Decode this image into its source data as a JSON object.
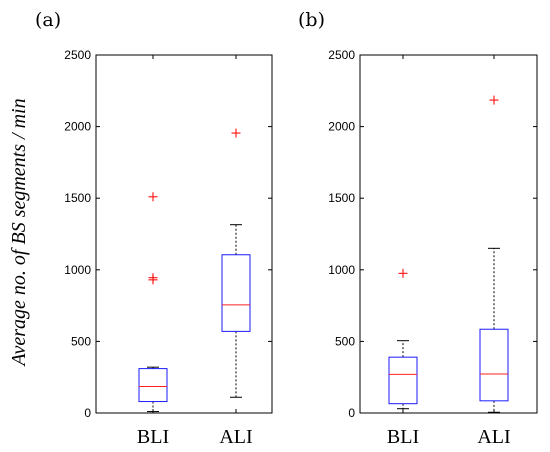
{
  "chart_data": [
    {
      "type": "box",
      "panel_label": "(a)",
      "ylabel": "Average no. of BS segments / min",
      "ylim": [
        0,
        2500
      ],
      "yticks": [
        0,
        500,
        1000,
        1500,
        2000,
        2500
      ],
      "ytick_labels": [
        "0",
        "500",
        "1000",
        "1500",
        "2000",
        "2500"
      ],
      "categories": [
        "BLI",
        "ALI"
      ],
      "boxes": [
        {
          "category": "BLI",
          "whisker_low": 10,
          "q1": 80,
          "median": 185,
          "q3": 310,
          "whisker_high": 320,
          "outliers": [
            1510,
            945,
            930
          ]
        },
        {
          "category": "ALI",
          "whisker_low": 110,
          "q1": 570,
          "median": 755,
          "q3": 1105,
          "whisker_high": 1315,
          "outliers": [
            1955
          ]
        }
      ],
      "colors": {
        "box": "#1a1aff",
        "median": "#ff2020",
        "outlier": "#ff2020",
        "whisker": "#000000"
      }
    },
    {
      "type": "box",
      "panel_label": "(b)",
      "ylabel": "",
      "ylim": [
        0,
        2500
      ],
      "yticks": [
        0,
        500,
        1000,
        1500,
        2000,
        2500
      ],
      "ytick_labels": [
        "0",
        "500",
        "1000",
        "1500",
        "2000",
        "2500"
      ],
      "categories": [
        "BLI",
        "ALI"
      ],
      "boxes": [
        {
          "category": "BLI",
          "whisker_low": 30,
          "q1": 65,
          "median": 270,
          "q3": 390,
          "whisker_high": 505,
          "outliers": [
            975
          ]
        },
        {
          "category": "ALI",
          "whisker_low": 5,
          "q1": 85,
          "median": 272,
          "q3": 585,
          "whisker_high": 1150,
          "outliers": [
            2185
          ]
        }
      ],
      "colors": {
        "box": "#1a1aff",
        "median": "#ff2020",
        "outlier": "#ff2020",
        "whisker": "#000000"
      }
    }
  ]
}
